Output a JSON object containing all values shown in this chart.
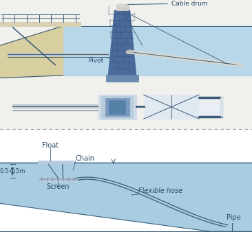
{
  "bg_color": "#f0f0ec",
  "water_top_color": "#b8d8ea",
  "water_bot_color": "#a8cce0",
  "tower_color": "#4a6a9a",
  "tower_dark": "#2a4a78",
  "line_color": "#3a5a78",
  "text_color": "#2a4a6a",
  "divider_color": "#999999",
  "platform_color": "#d8d0b0",
  "pipe_color": "#c8d8e8",
  "float_color": "#b8cce0",
  "screen_color": "#8098b8",
  "labels_top": {
    "cable_drum": "Cable drum",
    "pivot": "Pivot"
  },
  "labels_bottom": {
    "float": "Float",
    "chain": "Chain",
    "screen": "Screen",
    "flexible_hose": "Flexible hose",
    "pipe": "Pipe",
    "depth": "0.5-1.5m"
  }
}
